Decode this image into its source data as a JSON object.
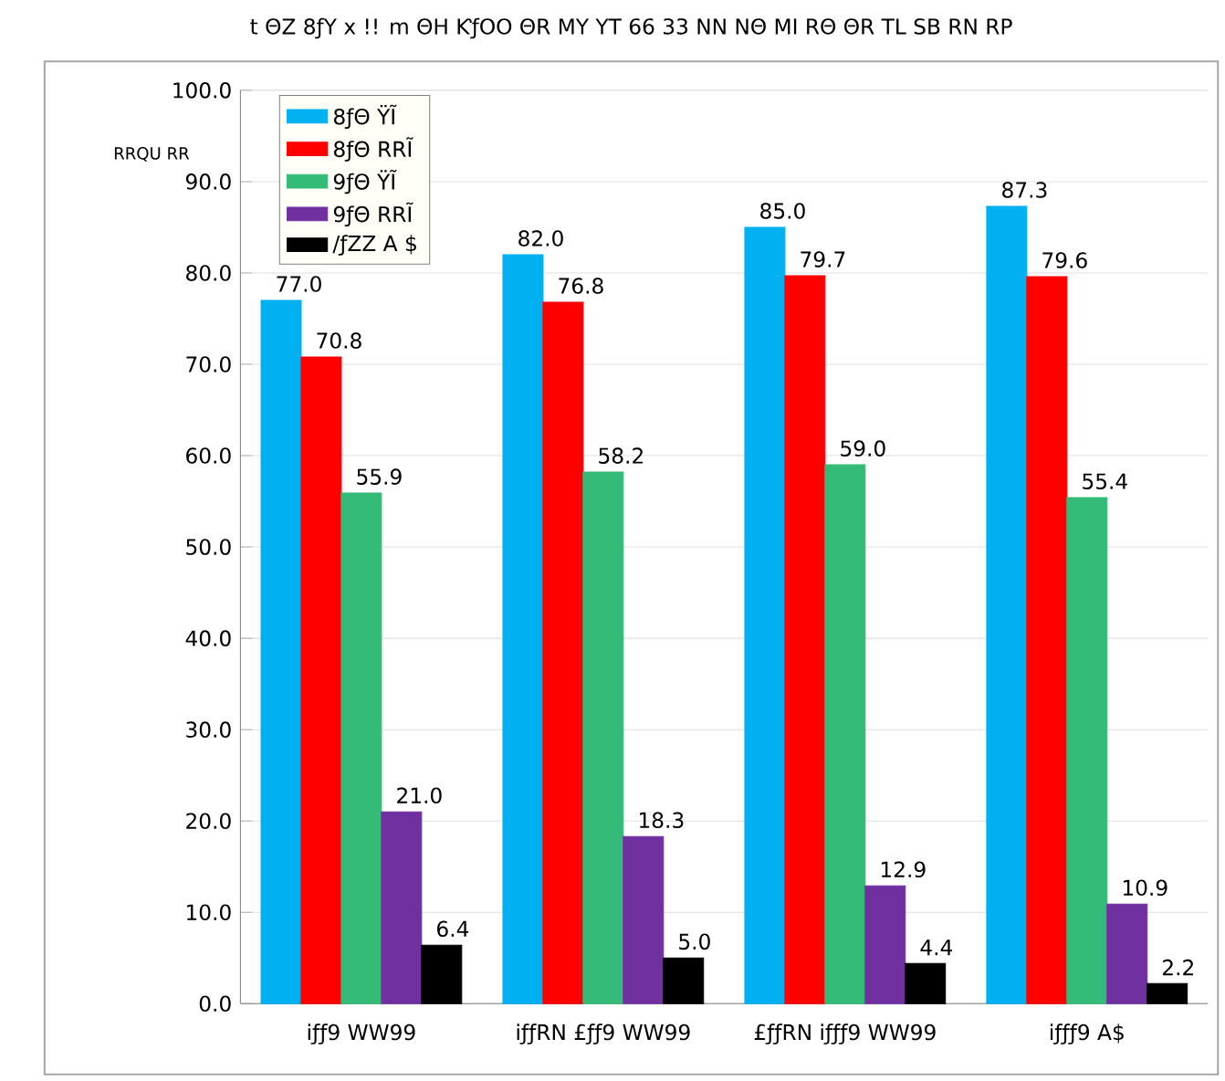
{
  "chart_data": {
    "type": "bar",
    "title": "t ΘZ 8ƒY x !! m ΘH ƘƒOO ΘR MY YT 66 33 NN NΘ MI RΘ ΘR TL SB RN RP",
    "ylabel": "RRQU RR",
    "categories": [
      "iƒƒ9 WW99",
      "iƒƒRN £ƒƒ9 WW99",
      "£ƒƒRN iƒƒƒ9 WW99",
      "iƒƒƒ9 A$"
    ],
    "series": [
      {
        "name": "8ƒΘ ŸĨ",
        "color": "#00b0f0",
        "values": [
          77.0,
          82.0,
          85.0,
          87.3
        ],
        "value_labels": [
          "77.0",
          "82.0",
          "85.0",
          "87.3"
        ]
      },
      {
        "name": "8ƒΘ RRĨ",
        "color": "#ff0000",
        "values": [
          70.8,
          76.8,
          79.7,
          79.6
        ],
        "value_labels": [
          "70.8",
          "76.8",
          "79.7",
          "79.6"
        ]
      },
      {
        "name": "9ƒΘ ŸĨ",
        "color": "#33bb77",
        "values": [
          55.9,
          58.2,
          59.0,
          55.4
        ],
        "value_labels": [
          "55.9",
          "58.2",
          "59.0",
          "55.4"
        ]
      },
      {
        "name": "9ƒΘ RRĨ",
        "color": "#7030a0",
        "values": [
          21.0,
          18.3,
          12.9,
          10.9
        ],
        "value_labels": [
          "21.0",
          "18.3",
          "12.9",
          "10.9"
        ]
      },
      {
        "name": "/ƒZZ A $",
        "color": "#000000",
        "values": [
          6.4,
          5.0,
          4.4,
          2.2
        ],
        "value_labels": [
          "6.4",
          "5.0",
          "4.4",
          "2.2"
        ]
      }
    ],
    "ylim": [
      0,
      100
    ],
    "yticks": [
      {
        "value": 0,
        "label": "0.0"
      },
      {
        "value": 10,
        "label": "10.0"
      },
      {
        "value": 20,
        "label": "20.0"
      },
      {
        "value": 30,
        "label": "30.0"
      },
      {
        "value": 40,
        "label": "40.0"
      },
      {
        "value": 50,
        "label": "50.0"
      },
      {
        "value": 60,
        "label": "60.0"
      },
      {
        "value": 70,
        "label": "70.0"
      },
      {
        "value": 80,
        "label": "80.0"
      },
      {
        "value": 90,
        "label": "90.0"
      },
      {
        "value": 100,
        "label": "100.0"
      }
    ],
    "grid": "y",
    "legend": "top left"
  }
}
